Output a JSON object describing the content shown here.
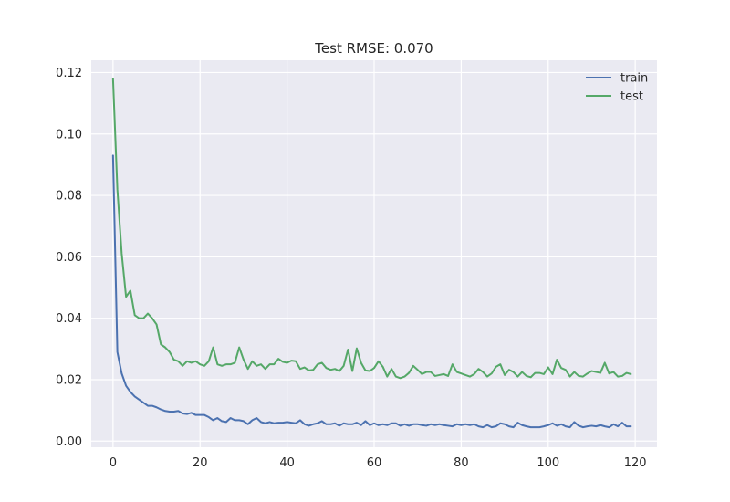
{
  "chart_data": {
    "type": "line",
    "title": "Test RMSE: 0.070",
    "xlabel": "",
    "ylabel": "",
    "xlim": [
      -5,
      125
    ],
    "ylim": [
      -0.002,
      0.124
    ],
    "xticks": [
      0,
      20,
      40,
      60,
      80,
      100,
      120
    ],
    "xtick_labels": [
      "0",
      "20",
      "40",
      "60",
      "80",
      "100",
      "120"
    ],
    "yticks": [
      0.0,
      0.02,
      0.04,
      0.06,
      0.08,
      0.1,
      0.12
    ],
    "ytick_labels": [
      "0.00",
      "0.02",
      "0.04",
      "0.06",
      "0.08",
      "0.10",
      "0.12"
    ],
    "grid": true,
    "legend_position": "top-right",
    "series": [
      {
        "name": "train",
        "color": "#4c72b0",
        "x": [
          0,
          1,
          2,
          3,
          4,
          5,
          6,
          7,
          8,
          9,
          10,
          11,
          12,
          13,
          14,
          15,
          16,
          17,
          18,
          19,
          20,
          21,
          22,
          23,
          24,
          25,
          26,
          27,
          28,
          29,
          30,
          31,
          32,
          33,
          34,
          35,
          36,
          37,
          38,
          39,
          40,
          41,
          42,
          43,
          44,
          45,
          46,
          47,
          48,
          49,
          50,
          51,
          52,
          53,
          54,
          55,
          56,
          57,
          58,
          59,
          60,
          61,
          62,
          63,
          64,
          65,
          66,
          67,
          68,
          69,
          70,
          71,
          72,
          73,
          74,
          75,
          76,
          77,
          78,
          79,
          80,
          81,
          82,
          83,
          84,
          85,
          86,
          87,
          88,
          89,
          90,
          91,
          92,
          93,
          94,
          95,
          96,
          97,
          98,
          99,
          100,
          101,
          102,
          103,
          104,
          105,
          106,
          107,
          108,
          109,
          110,
          111,
          112,
          113,
          114,
          115,
          116,
          117,
          118,
          119
        ],
        "values": [
          0.093,
          0.029,
          0.022,
          0.018,
          0.016,
          0.0145,
          0.0135,
          0.0125,
          0.0115,
          0.0115,
          0.011,
          0.0103,
          0.0098,
          0.0096,
          0.0096,
          0.0098,
          0.009,
          0.0088,
          0.0092,
          0.0085,
          0.0085,
          0.0085,
          0.0078,
          0.0068,
          0.0075,
          0.0065,
          0.0062,
          0.0075,
          0.0068,
          0.0068,
          0.0065,
          0.0055,
          0.0068,
          0.0075,
          0.0062,
          0.0058,
          0.0062,
          0.0058,
          0.006,
          0.006,
          0.0062,
          0.006,
          0.0058,
          0.0068,
          0.0055,
          0.005,
          0.0055,
          0.0058,
          0.0065,
          0.0055,
          0.0055,
          0.0058,
          0.005,
          0.0058,
          0.0055,
          0.0055,
          0.006,
          0.0052,
          0.0065,
          0.0052,
          0.0058,
          0.0052,
          0.0055,
          0.0052,
          0.0058,
          0.0058,
          0.005,
          0.0055,
          0.005,
          0.0055,
          0.0055,
          0.0052,
          0.005,
          0.0055,
          0.0052,
          0.0055,
          0.0052,
          0.005,
          0.0048,
          0.0055,
          0.0052,
          0.0055,
          0.0052,
          0.0055,
          0.0048,
          0.0045,
          0.0052,
          0.0045,
          0.0048,
          0.0058,
          0.0055,
          0.0048,
          0.0045,
          0.006,
          0.0052,
          0.0048,
          0.0045,
          0.0045,
          0.0045,
          0.0048,
          0.0052,
          0.0058,
          0.005,
          0.0055,
          0.0048,
          0.0045,
          0.0062,
          0.005,
          0.0045,
          0.0048,
          0.005,
          0.0048,
          0.0052,
          0.0048,
          0.0045,
          0.0055,
          0.0048,
          0.006,
          0.0048,
          0.0048
        ]
      },
      {
        "name": "test",
        "color": "#55a868",
        "x": [
          0,
          1,
          2,
          3,
          4,
          5,
          6,
          7,
          8,
          9,
          10,
          11,
          12,
          13,
          14,
          15,
          16,
          17,
          18,
          19,
          20,
          21,
          22,
          23,
          24,
          25,
          26,
          27,
          28,
          29,
          30,
          31,
          32,
          33,
          34,
          35,
          36,
          37,
          38,
          39,
          40,
          41,
          42,
          43,
          44,
          45,
          46,
          47,
          48,
          49,
          50,
          51,
          52,
          53,
          54,
          55,
          56,
          57,
          58,
          59,
          60,
          61,
          62,
          63,
          64,
          65,
          66,
          67,
          68,
          69,
          70,
          71,
          72,
          73,
          74,
          75,
          76,
          77,
          78,
          79,
          80,
          81,
          82,
          83,
          84,
          85,
          86,
          87,
          88,
          89,
          90,
          91,
          92,
          93,
          94,
          95,
          96,
          97,
          98,
          99,
          100,
          101,
          102,
          103,
          104,
          105,
          106,
          107,
          108,
          109,
          110,
          111,
          112,
          113,
          114,
          115,
          116,
          117,
          118,
          119
        ],
        "values": [
          0.118,
          0.082,
          0.061,
          0.047,
          0.049,
          0.041,
          0.04,
          0.04,
          0.0415,
          0.04,
          0.038,
          0.0315,
          0.0305,
          0.029,
          0.0265,
          0.026,
          0.0245,
          0.026,
          0.0255,
          0.026,
          0.025,
          0.0245,
          0.026,
          0.0305,
          0.025,
          0.0245,
          0.025,
          0.025,
          0.0255,
          0.0305,
          0.0265,
          0.0235,
          0.026,
          0.0245,
          0.025,
          0.0235,
          0.025,
          0.025,
          0.0268,
          0.0258,
          0.0255,
          0.0262,
          0.026,
          0.0235,
          0.024,
          0.023,
          0.0232,
          0.025,
          0.0255,
          0.0238,
          0.0232,
          0.0235,
          0.0228,
          0.0245,
          0.0298,
          0.0228,
          0.0302,
          0.0255,
          0.023,
          0.0228,
          0.0238,
          0.026,
          0.0242,
          0.021,
          0.0235,
          0.021,
          0.0205,
          0.021,
          0.0222,
          0.0245,
          0.0232,
          0.0218,
          0.0225,
          0.0225,
          0.0212,
          0.0215,
          0.0218,
          0.0212,
          0.025,
          0.0225,
          0.022,
          0.0215,
          0.021,
          0.0218,
          0.0235,
          0.0225,
          0.021,
          0.022,
          0.0242,
          0.025,
          0.0215,
          0.0232,
          0.0225,
          0.021,
          0.0225,
          0.0212,
          0.0208,
          0.0222,
          0.0222,
          0.0218,
          0.024,
          0.0218,
          0.0265,
          0.0238,
          0.0232,
          0.021,
          0.0225,
          0.0212,
          0.021,
          0.022,
          0.0228,
          0.0225,
          0.0222,
          0.0255,
          0.022,
          0.0225,
          0.021,
          0.0212,
          0.0222,
          0.0218
        ]
      }
    ]
  }
}
